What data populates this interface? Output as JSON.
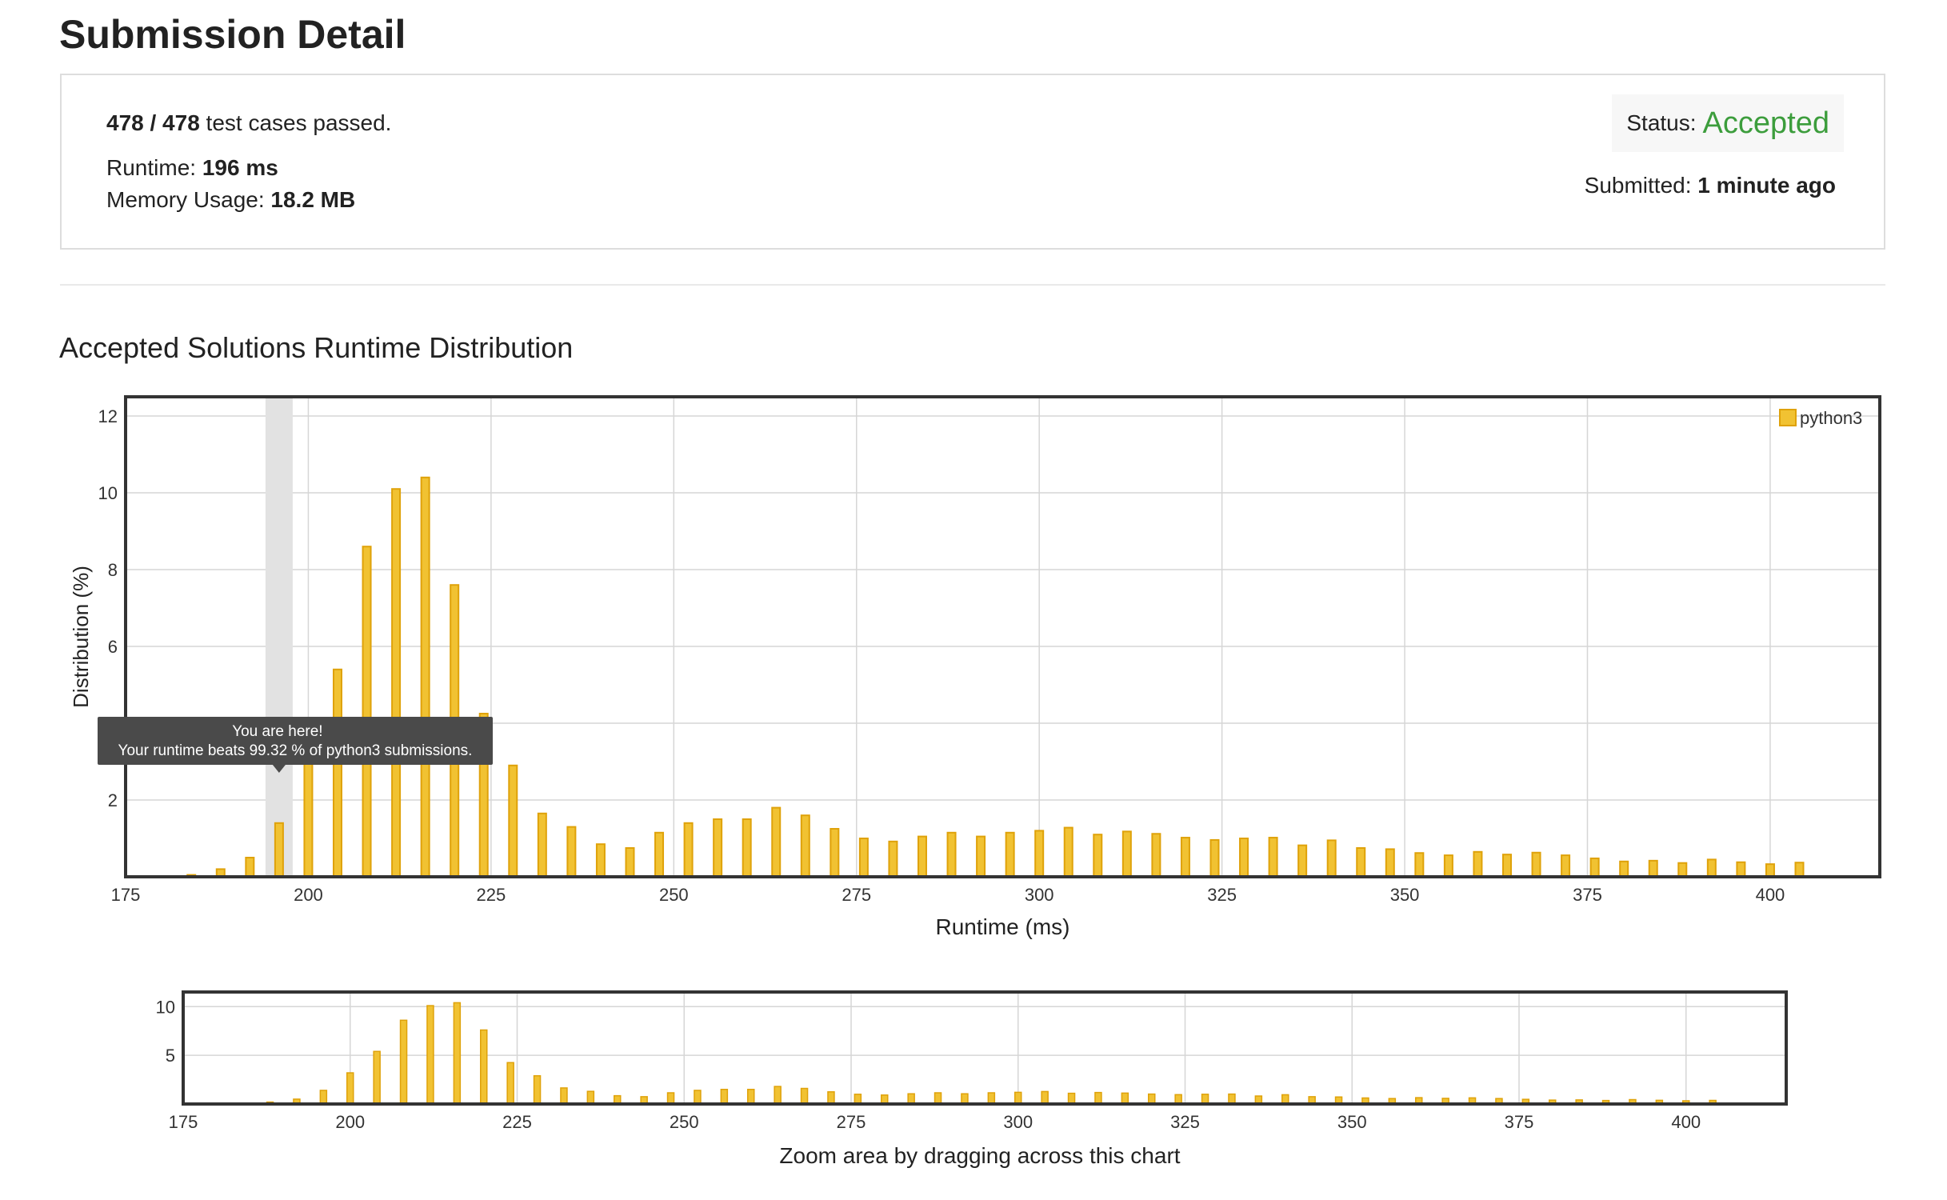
{
  "page": {
    "title": "Submission Detail"
  },
  "summary": {
    "passed_count": "478 / 478",
    "passed_text": " test cases passed.",
    "runtime_label": "Runtime: ",
    "runtime_value": "196 ms",
    "memory_label": "Memory Usage: ",
    "memory_value": "18.2 MB",
    "status_label": "Status:",
    "status_value": "Accepted",
    "status_color": "#3c9d3c",
    "submitted_label": "Submitted: ",
    "submitted_value": "1 minute ago"
  },
  "section": {
    "title": "Accepted Solutions Runtime Distribution"
  },
  "chart_data": [
    {
      "type": "bar",
      "ylabel": "Distribution (%)",
      "xlabel": "Runtime (ms)",
      "xlim": [
        175,
        415
      ],
      "ylim": [
        0,
        12.5
      ],
      "xticks": [
        175,
        200,
        225,
        250,
        275,
        300,
        325,
        350,
        375,
        400
      ],
      "yticks": [
        2,
        4,
        6,
        8,
        10,
        12
      ],
      "grid": true,
      "legend_position": "top-right",
      "bar_color": "#f1c232",
      "bar_edge_color": "#dfa20a",
      "series": [
        {
          "name": "python3",
          "x": [
            184,
            188,
            192,
            196,
            200,
            204,
            208,
            212,
            216,
            220,
            224,
            228,
            232,
            236,
            240,
            244,
            248,
            252,
            256,
            260,
            264,
            268,
            272,
            276,
            280,
            284,
            288,
            292,
            296,
            300,
            304,
            308,
            312,
            316,
            320,
            324,
            328,
            332,
            336,
            340,
            344,
            348,
            352,
            356,
            360,
            364,
            368,
            372,
            376,
            380,
            384,
            388,
            392,
            396,
            400,
            404
          ],
          "values": [
            0.05,
            0.2,
            0.5,
            1.4,
            3.2,
            5.4,
            8.6,
            10.1,
            10.4,
            7.6,
            4.25,
            2.9,
            1.65,
            1.3,
            0.85,
            0.75,
            1.15,
            1.4,
            1.5,
            1.5,
            1.8,
            1.6,
            1.25,
            1.0,
            0.92,
            1.05,
            1.15,
            1.05,
            1.15,
            1.2,
            1.28,
            1.1,
            1.18,
            1.12,
            1.02,
            0.96,
            1.0,
            1.02,
            0.82,
            0.95,
            0.75,
            0.72,
            0.62,
            0.56,
            0.65,
            0.58,
            0.63,
            0.56,
            0.48,
            0.4,
            0.42,
            0.36,
            0.45,
            0.38,
            0.33,
            0.37
          ]
        }
      ],
      "highlight": {
        "x": 196,
        "tooltip_title": "You are here!",
        "tooltip_text": "Your runtime beats 99.32 % of python3 submissions."
      }
    },
    {
      "type": "bar",
      "role": "overview",
      "xlabel": "Zoom area by dragging across this chart",
      "xlim": [
        175,
        415
      ],
      "ylim": [
        0,
        11.5
      ],
      "xticks": [
        175,
        200,
        225,
        250,
        275,
        300,
        325,
        350,
        375,
        400
      ],
      "yticks": [
        5,
        10
      ],
      "grid": true,
      "series_ref": "python3"
    }
  ]
}
